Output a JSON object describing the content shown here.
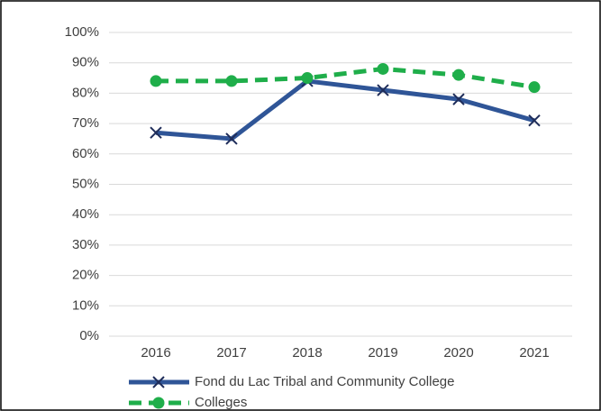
{
  "chart_data": {
    "type": "line",
    "categories": [
      "2016",
      "2017",
      "2018",
      "2019",
      "2020",
      "2021"
    ],
    "series": [
      {
        "name": "Fond du Lac Tribal and Community College",
        "color": "#2f5597",
        "marker": "x",
        "dashed": false,
        "values": [
          67,
          65,
          84,
          81,
          78,
          71
        ]
      },
      {
        "name": "Colleges",
        "color": "#1fae4a",
        "marker": "circle",
        "dashed": true,
        "values": [
          84,
          84,
          85,
          88,
          86,
          82
        ]
      }
    ],
    "ylim": [
      0,
      100
    ],
    "yticks": [
      {
        "value": 0,
        "label": "0%"
      },
      {
        "value": 10,
        "label": "10%"
      },
      {
        "value": 20,
        "label": "20%"
      },
      {
        "value": 30,
        "label": "30%"
      },
      {
        "value": 40,
        "label": "40%"
      },
      {
        "value": 50,
        "label": "50%"
      },
      {
        "value": 60,
        "label": "60%"
      },
      {
        "value": 70,
        "label": "70%"
      },
      {
        "value": 80,
        "label": "80%"
      },
      {
        "value": 90,
        "label": "90%"
      },
      {
        "value": 100,
        "label": "100%"
      }
    ],
    "grid": true,
    "legend": "bottom"
  }
}
